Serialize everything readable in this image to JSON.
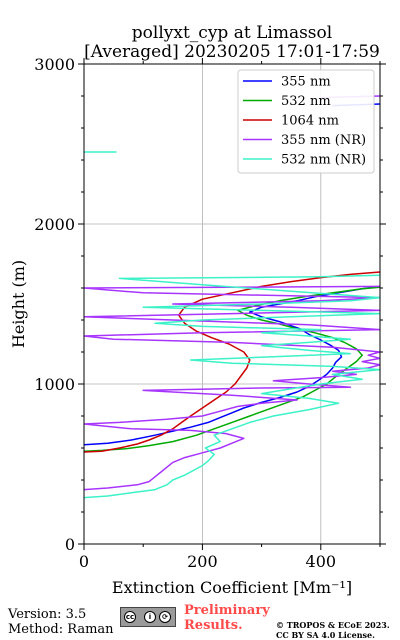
{
  "chart_data": {
    "type": "line",
    "title_line1": "pollyxt_cyp at Limassol",
    "title_line2": "[Averaged] 20230205 17:01-17:59",
    "xlabel": "Extinction Coefficient [Mm⁻¹]",
    "ylabel": "Height (m)",
    "xlim": [
      0,
      500
    ],
    "ylim": [
      0,
      3000
    ],
    "x_ticks": [
      0,
      200,
      400
    ],
    "y_ticks": [
      0,
      1000,
      2000,
      3000
    ],
    "grid": true,
    "legend_position": "top-right",
    "series": [
      {
        "name": "355 nm",
        "color": "#0000ff",
        "points": [
          [
            0,
            620
          ],
          [
            40,
            630
          ],
          [
            80,
            650
          ],
          [
            120,
            680
          ],
          [
            150,
            705
          ],
          [
            180,
            730
          ],
          [
            210,
            760
          ],
          [
            230,
            790
          ],
          [
            250,
            820
          ],
          [
            270,
            850
          ],
          [
            300,
            885
          ],
          [
            330,
            915
          ],
          [
            360,
            950
          ],
          [
            380,
            985
          ],
          [
            395,
            1020
          ],
          [
            410,
            1060
          ],
          [
            420,
            1100
          ],
          [
            425,
            1135
          ],
          [
            435,
            1170
          ],
          [
            430,
            1210
          ],
          [
            415,
            1245
          ],
          [
            400,
            1275
          ],
          [
            380,
            1310
          ],
          [
            365,
            1345
          ],
          [
            330,
            1390
          ],
          [
            300,
            1420
          ],
          [
            280,
            1450
          ],
          [
            300,
            1480
          ],
          [
            330,
            1500
          ],
          [
            360,
            1520
          ],
          [
            390,
            1545
          ],
          [
            430,
            1570
          ],
          [
            470,
            1595
          ],
          [
            500,
            1610
          ]
        ]
      },
      {
        "name": "532 nm",
        "color": "#00aa00",
        "points": [
          [
            0,
            580
          ],
          [
            30,
            585
          ],
          [
            70,
            595
          ],
          [
            110,
            615
          ],
          [
            150,
            640
          ],
          [
            190,
            680
          ],
          [
            220,
            720
          ],
          [
            250,
            760
          ],
          [
            280,
            800
          ],
          [
            310,
            840
          ],
          [
            340,
            880
          ],
          [
            370,
            920
          ],
          [
            390,
            960
          ],
          [
            410,
            1000
          ],
          [
            420,
            1030
          ],
          [
            430,
            1060
          ],
          [
            445,
            1100
          ],
          [
            460,
            1140
          ],
          [
            470,
            1180
          ],
          [
            460,
            1220
          ],
          [
            440,
            1260
          ],
          [
            420,
            1290
          ],
          [
            390,
            1320
          ],
          [
            360,
            1345
          ],
          [
            330,
            1375
          ],
          [
            300,
            1400
          ],
          [
            275,
            1430
          ],
          [
            260,
            1460
          ],
          [
            290,
            1490
          ],
          [
            330,
            1520
          ],
          [
            380,
            1550
          ],
          [
            430,
            1575
          ],
          [
            470,
            1595
          ],
          [
            500,
            1605
          ]
        ]
      },
      {
        "name": "1064 nm",
        "color": "#cc0000",
        "points": [
          [
            0,
            575
          ],
          [
            30,
            580
          ],
          [
            60,
            600
          ],
          [
            90,
            625
          ],
          [
            110,
            650
          ],
          [
            130,
            680
          ],
          [
            150,
            720
          ],
          [
            165,
            760
          ],
          [
            180,
            800
          ],
          [
            200,
            850
          ],
          [
            220,
            900
          ],
          [
            240,
            950
          ],
          [
            255,
            1000
          ],
          [
            265,
            1050
          ],
          [
            275,
            1100
          ],
          [
            280,
            1150
          ],
          [
            270,
            1200
          ],
          [
            245,
            1250
          ],
          [
            215,
            1290
          ],
          [
            190,
            1330
          ],
          [
            170,
            1380
          ],
          [
            160,
            1430
          ],
          [
            170,
            1480
          ],
          [
            200,
            1530
          ],
          [
            250,
            1570
          ],
          [
            300,
            1610
          ],
          [
            350,
            1640
          ],
          [
            400,
            1665
          ],
          [
            450,
            1685
          ],
          [
            500,
            1700
          ]
        ]
      },
      {
        "name": "355 nm (NR)",
        "color": "#a835ff",
        "points": [
          [
            0,
            340
          ],
          [
            40,
            350
          ],
          [
            90,
            370
          ],
          [
            110,
            390
          ],
          [
            120,
            420
          ],
          [
            130,
            450
          ],
          [
            140,
            480
          ],
          [
            150,
            510
          ],
          [
            170,
            540
          ],
          [
            200,
            570
          ],
          [
            230,
            600
          ],
          [
            250,
            630
          ],
          [
            270,
            660
          ],
          [
            240,
            690
          ],
          [
            180,
            710
          ],
          [
            80,
            720
          ],
          [
            0,
            750
          ],
          [
            60,
            760
          ],
          [
            140,
            780
          ],
          [
            200,
            800
          ],
          [
            230,
            830
          ],
          [
            260,
            860
          ],
          [
            300,
            880
          ],
          [
            360,
            900
          ],
          [
            250,
            930
          ],
          [
            100,
            960
          ],
          [
            300,
            975
          ],
          [
            450,
            980
          ],
          [
            380,
            1000
          ],
          [
            320,
            1020
          ],
          [
            400,
            1040
          ],
          [
            460,
            1060
          ],
          [
            420,
            1080
          ],
          [
            480,
            1100
          ],
          [
            500,
            1120
          ],
          [
            470,
            1140
          ],
          [
            500,
            1160
          ],
          [
            480,
            1180
          ],
          [
            500,
            1200
          ],
          [
            420,
            1230
          ],
          [
            250,
            1260
          ],
          [
            50,
            1280
          ],
          [
            0,
            1300
          ],
          [
            200,
            1320
          ],
          [
            500,
            1340
          ],
          [
            380,
            1370
          ],
          [
            150,
            1400
          ],
          [
            0,
            1420
          ],
          [
            250,
            1440
          ],
          [
            500,
            1460
          ],
          [
            350,
            1480
          ],
          [
            150,
            1500
          ],
          [
            400,
            1520
          ],
          [
            500,
            1540
          ],
          [
            100,
            1570
          ],
          [
            0,
            1600
          ],
          [
            500,
            1610
          ]
        ]
      },
      {
        "name": "532 nm (NR)",
        "color": "#3cf2c8",
        "points": [
          [
            0,
            290
          ],
          [
            40,
            300
          ],
          [
            80,
            320
          ],
          [
            120,
            340
          ],
          [
            140,
            370
          ],
          [
            150,
            400
          ],
          [
            170,
            430
          ],
          [
            185,
            460
          ],
          [
            200,
            490
          ],
          [
            210,
            520
          ],
          [
            220,
            560
          ],
          [
            205,
            600
          ],
          [
            230,
            640
          ],
          [
            220,
            680
          ],
          [
            250,
            720
          ],
          [
            280,
            760
          ],
          [
            320,
            800
          ],
          [
            380,
            840
          ],
          [
            430,
            880
          ],
          [
            380,
            910
          ],
          [
            300,
            940
          ],
          [
            350,
            970
          ],
          [
            400,
            1000
          ],
          [
            470,
            1030
          ],
          [
            420,
            1060
          ],
          [
            500,
            1090
          ],
          [
            420,
            1110
          ],
          [
            250,
            1130
          ],
          [
            180,
            1150
          ],
          [
            320,
            1170
          ],
          [
            450,
            1190
          ],
          [
            380,
            1210
          ],
          [
            300,
            1240
          ],
          [
            380,
            1260
          ],
          [
            450,
            1280
          ],
          [
            380,
            1300
          ],
          [
            300,
            1320
          ],
          [
            400,
            1340
          ],
          [
            200,
            1360
          ],
          [
            120,
            1380
          ],
          [
            200,
            1400
          ],
          [
            350,
            1420
          ],
          [
            500,
            1440
          ],
          [
            300,
            1460
          ],
          [
            100,
            1480
          ],
          [
            300,
            1500
          ],
          [
            450,
            1520
          ],
          [
            500,
            1540
          ],
          [
            350,
            1580
          ],
          [
            200,
            1620
          ],
          [
            60,
            1660
          ],
          [
            400,
            1670
          ],
          [
            500,
            1680
          ]
        ]
      }
    ],
    "extra_segments": [
      {
        "series": "532 nm (NR)",
        "points": [
          [
            0,
            2450
          ],
          [
            55,
            2450
          ]
        ]
      },
      {
        "series": "355 nm",
        "points": [
          [
            420,
            2740
          ],
          [
            500,
            2750
          ]
        ]
      },
      {
        "series": "355 nm (NR)",
        "points": [
          [
            400,
            2790
          ],
          [
            500,
            2800
          ]
        ]
      }
    ]
  },
  "footer": {
    "version": "Version: 3.5",
    "method": "Method: Raman",
    "preliminary_line1": "Preliminary",
    "preliminary_line2": "Results.",
    "copyright_line1": "© TROPOS & ECoE 2023.",
    "copyright_line2": "CC BY SA 4.0 License."
  },
  "colors": {
    "preliminary": "#ff4a4a",
    "grid": "#b0b0b0"
  }
}
